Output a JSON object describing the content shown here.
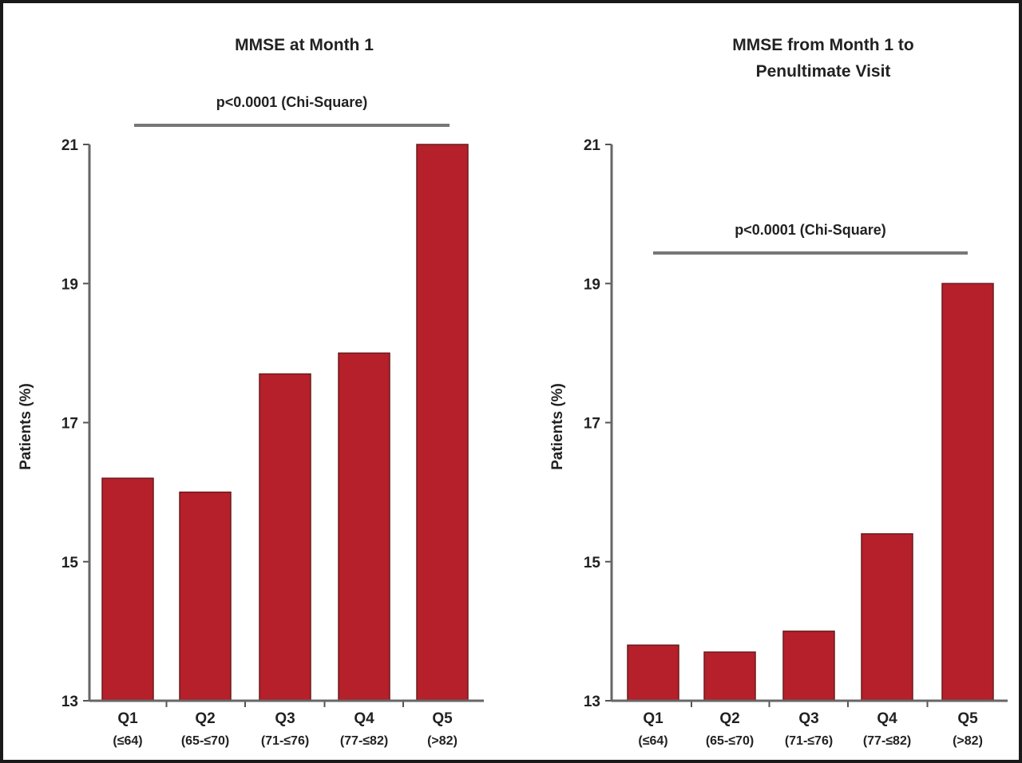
{
  "chart_data": [
    {
      "type": "bar",
      "title": [
        "MMSE at Month 1"
      ],
      "annotation": "p<0.0001 (Chi-Square)",
      "ylabel": "Patients (%)",
      "ylim": [
        13,
        21
      ],
      "yticks": [
        13,
        15,
        17,
        19,
        21
      ],
      "categories": [
        "Q1",
        "Q2",
        "Q3",
        "Q4",
        "Q5"
      ],
      "subcategories": [
        "(≤64)",
        "(65-≤70)",
        "(71-≤76)",
        "(77-≤82)",
        "(>82)"
      ],
      "values": [
        16.2,
        16.0,
        17.7,
        18.0,
        21.0
      ],
      "color": "#b5202b"
    },
    {
      "type": "bar",
      "title": [
        "MMSE from Month 1 to",
        "Penultimate Visit"
      ],
      "annotation": "p<0.0001 (Chi-Square)",
      "ylabel": "Patients (%)",
      "ylim": [
        13,
        21
      ],
      "yticks": [
        13,
        15,
        17,
        19,
        21
      ],
      "categories": [
        "Q1",
        "Q2",
        "Q3",
        "Q4",
        "Q5"
      ],
      "subcategories": [
        "(≤64)",
        "(65-≤70)",
        "(71-≤76)",
        "(77-≤82)",
        "(>82)"
      ],
      "values": [
        13.8,
        13.7,
        14.0,
        15.4,
        19.0
      ],
      "color": "#b5202b"
    }
  ]
}
